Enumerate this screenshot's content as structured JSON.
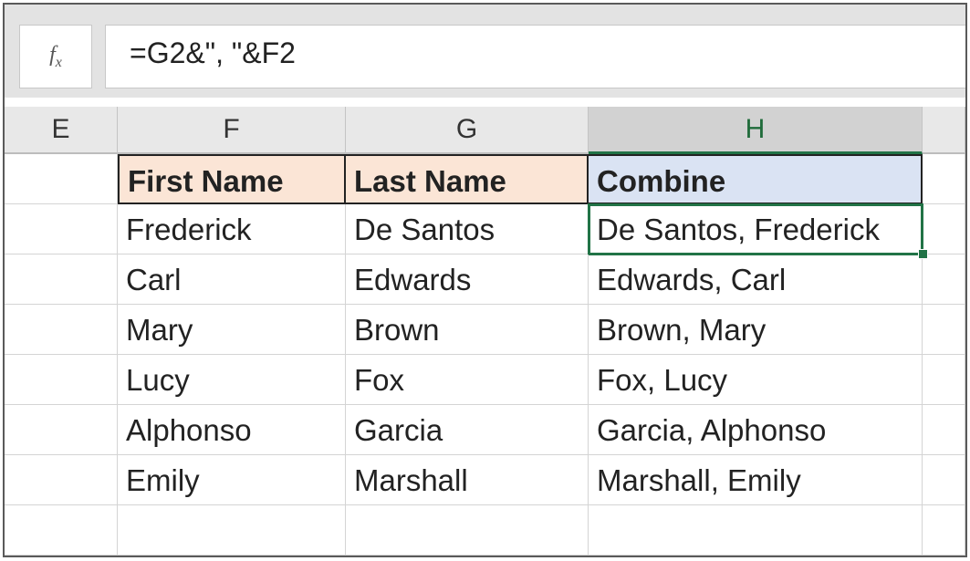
{
  "formula_bar": {
    "fx_label": "fx",
    "formula": "=G2&\", \"&F2"
  },
  "columns": [
    "E",
    "F",
    "G",
    "H"
  ],
  "selected_column": "H",
  "header_row": {
    "first_name": "First Name",
    "last_name": "Last Name",
    "combine": "Combine"
  },
  "rows": [
    {
      "first": "Frederick",
      "last": "De Santos",
      "combine": "De Santos, Frederick"
    },
    {
      "first": "Carl",
      "last": "Edwards",
      "combine": "Edwards, Carl"
    },
    {
      "first": "Mary",
      "last": "Brown",
      "combine": "Brown, Mary"
    },
    {
      "first": "Lucy",
      "last": "Fox",
      "combine": "Fox, Lucy"
    },
    {
      "first": "Alphonso",
      "last": "Garcia",
      "combine": "Garcia, Alphonso"
    },
    {
      "first": "Emily",
      "last": "Marshall",
      "combine": "Marshall, Emily"
    }
  ],
  "colors": {
    "accent_green": "#217346",
    "header_peach": "#fbe5d6",
    "header_blue": "#dae3f3"
  }
}
